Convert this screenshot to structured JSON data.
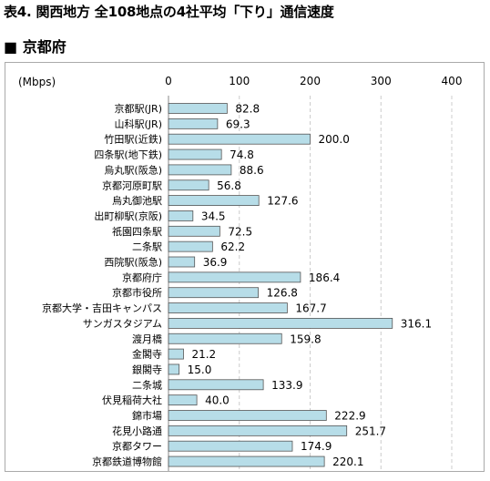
{
  "title": "表4. 関西地方 全108地点の4社平均「下り」通信速度",
  "section": "■ 京都府",
  "chart_data": {
    "type": "bar",
    "orientation": "horizontal",
    "unit_label": "(Mbps)",
    "xlim": [
      0,
      400
    ],
    "ticks": [
      "0",
      "100",
      "200",
      "300",
      "400"
    ],
    "grid": "vertical dashed",
    "bar_color": "#b7dde8",
    "categories": [
      "京都駅(JR)",
      "山科駅(JR)",
      "竹田駅(近鉄)",
      "四条駅(地下鉄)",
      "烏丸駅(阪急)",
      "京都河原町駅",
      "烏丸御池駅",
      "出町柳駅(京阪)",
      "祇園四条駅",
      "二条駅",
      "西院駅(阪急)",
      "京都府庁",
      "京都市役所",
      "京都大学・吉田キャンパス",
      "サンガスタジアム",
      "渡月橋",
      "金閣寺",
      "銀閣寺",
      "二条城",
      "伏見稲荷大社",
      "錦市場",
      "花見小路通",
      "京都タワー",
      "京都鉄道博物館"
    ],
    "values": [
      82.8,
      69.3,
      200.0,
      74.8,
      88.6,
      56.8,
      127.6,
      34.5,
      72.5,
      62.2,
      36.9,
      186.4,
      126.8,
      167.7,
      316.1,
      159.8,
      21.2,
      15.0,
      133.9,
      40.0,
      222.9,
      251.7,
      174.9,
      220.1
    ],
    "value_labels": [
      "82.8",
      "69.3",
      "200.0",
      "74.8",
      "88.6",
      "56.8",
      "127.6",
      "34.5",
      "72.5",
      "62.2",
      "36.9",
      "186.4",
      "126.8",
      "167.7",
      "316.1",
      "159.8",
      "21.2",
      "15.0",
      "133.9",
      "40.0",
      "222.9",
      "251.7",
      "174.9",
      "220.1"
    ]
  }
}
